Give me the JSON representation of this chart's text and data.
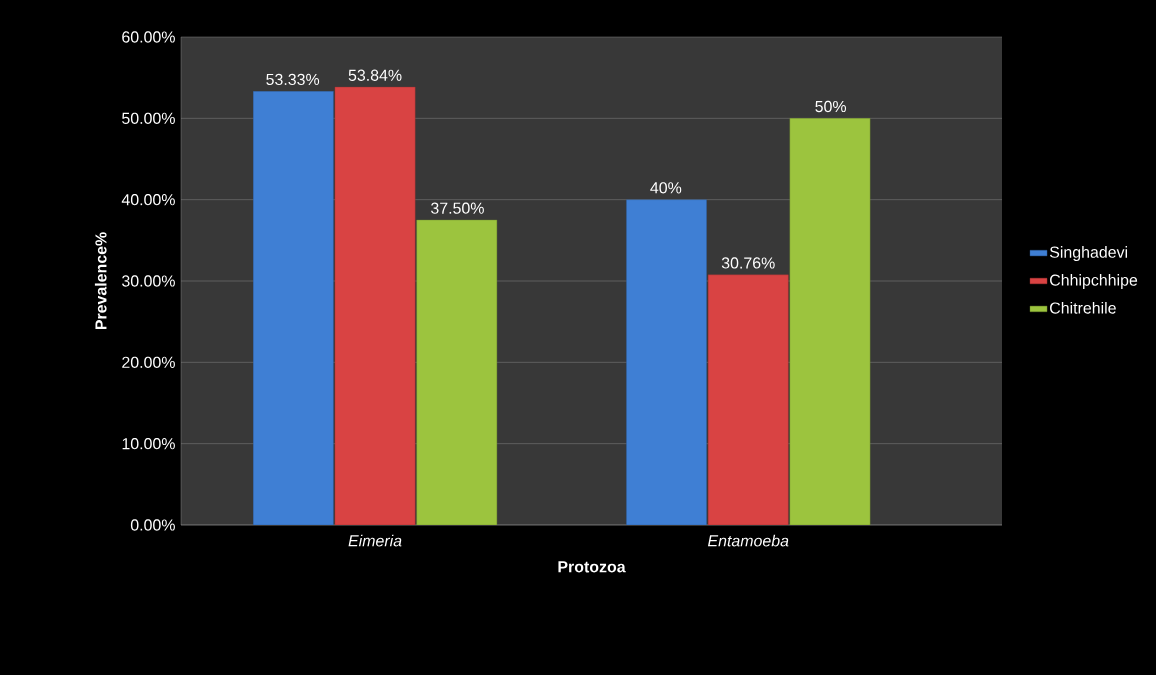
{
  "chart_data": {
    "type": "bar",
    "xlabel": "Protozoa",
    "ylabel": "Prevalence%",
    "categories": [
      "Eimeria",
      "Entamoeba"
    ],
    "series": [
      {
        "name": "Singhadevi",
        "color": "#3f7fd4",
        "values": [
          53.33,
          40
        ],
        "value_labels": [
          "53.33%",
          "40%"
        ]
      },
      {
        "name": "Chhipchhipe",
        "color": "#d94343",
        "values": [
          53.84,
          30.76
        ],
        "value_labels": [
          "53.84%",
          "30.76%"
        ]
      },
      {
        "name": "Chitrehile",
        "color": "#9cc43e",
        "values": [
          37.5,
          50
        ],
        "value_labels": [
          "37.50%",
          "50%"
        ]
      }
    ],
    "ylim": [
      0,
      60
    ],
    "yticks": [
      {
        "value": 0,
        "label": "0.00%"
      },
      {
        "value": 10,
        "label": "10.00%"
      },
      {
        "value": 20,
        "label": "20.00%"
      },
      {
        "value": 30,
        "label": "30.00%"
      },
      {
        "value": 40,
        "label": "40.00%"
      },
      {
        "value": 50,
        "label": "50.00%"
      },
      {
        "value": 60,
        "label": "60.00%"
      }
    ],
    "grid": "y",
    "legend": "right"
  }
}
